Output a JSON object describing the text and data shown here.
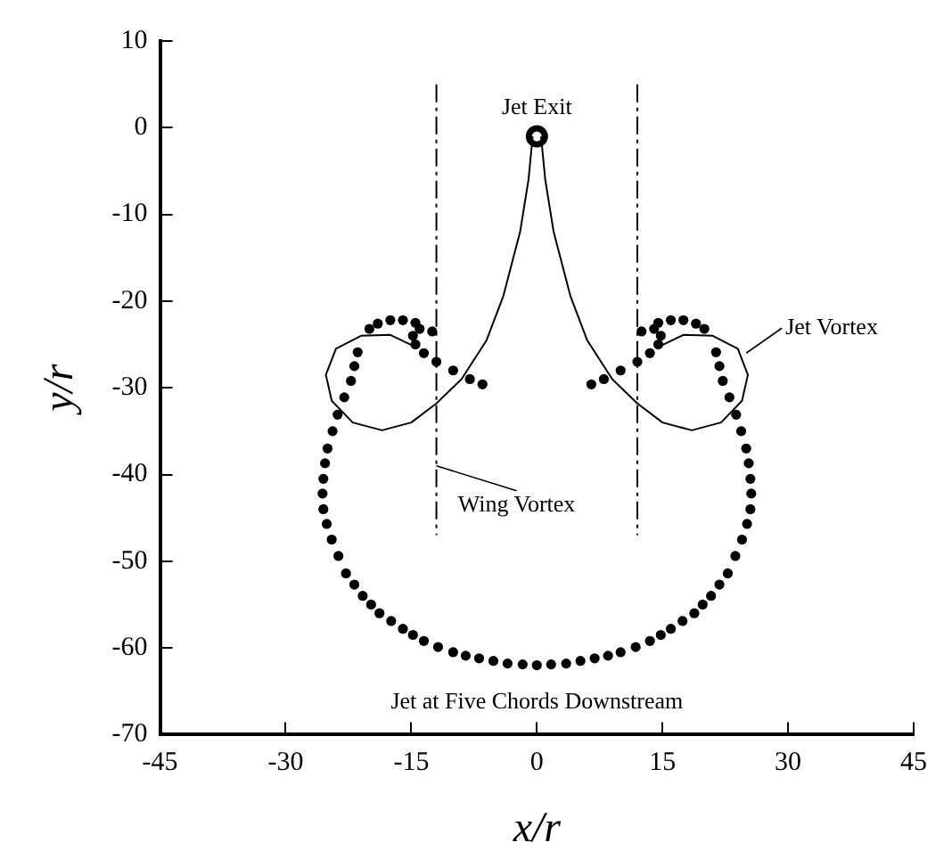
{
  "chart_data": {
    "type": "scatter",
    "xlabel": "x/r",
    "ylabel": "y/r",
    "xlim": [
      -45,
      45
    ],
    "ylim": [
      -70,
      10
    ],
    "xticks": [
      -45,
      -30,
      -15,
      0,
      15,
      30,
      45
    ],
    "yticks": [
      -70,
      -60,
      -50,
      -40,
      -30,
      -20,
      -10,
      0,
      10
    ],
    "grid": false,
    "legend": false,
    "annotations": [
      {
        "text": "Jet Exit",
        "x": 0,
        "y": -1
      },
      {
        "text": "Jet Vortex",
        "x": 25,
        "y": -26
      },
      {
        "text": "Wing Vortex",
        "x": -12,
        "y": -39
      },
      "Jet at Five Chords Downstream"
    ],
    "series": [
      {
        "type": "line",
        "color": "#000000",
        "marker": "none",
        "line_style": "solid",
        "x": [
          -0.5,
          -1,
          -2,
          -4,
          -6,
          -9,
          -12,
          -15,
          -18.5,
          -22,
          -24.5,
          -25.2,
          -24,
          -21,
          -17.5,
          -14.5
        ],
        "values": [
          -1,
          -6,
          -12,
          -19.4,
          -24.5,
          -29,
          -31.8,
          -34,
          -34.9,
          -34,
          -31.5,
          -28.5,
          -25.5,
          -24,
          -23.9,
          -25.3
        ]
      },
      {
        "type": "line",
        "color": "#000000",
        "marker": "none",
        "line_style": "solid",
        "x": [
          0.5,
          1,
          2,
          4,
          6,
          9,
          12,
          15,
          18.5,
          22,
          24.5,
          25.2,
          24,
          21,
          17.5,
          14.5
        ],
        "values": [
          -1,
          -6,
          -12,
          -19.4,
          -24.5,
          -29,
          -31.8,
          -34,
          -34.9,
          -34,
          -31.5,
          -28.5,
          -25.5,
          -24,
          -23.9,
          -25.3
        ]
      },
      {
        "type": "line",
        "color": "#000000",
        "marker": "none",
        "line_style": "dashed",
        "x": [
          -12,
          -12
        ],
        "values": [
          5,
          -47
        ]
      },
      {
        "type": "line",
        "color": "#000000",
        "marker": "none",
        "line_style": "dashed",
        "x": [
          12,
          12
        ],
        "values": [
          5,
          -47
        ]
      },
      {
        "color": "#000000",
        "marker": "circle",
        "x": [
          -21.8,
          -23,
          -24.4,
          -25.3,
          -25.6,
          -25.1,
          -23.7,
          -21.8,
          -19.8,
          -17.4,
          -14.8,
          -11.8,
          -8.5,
          -5.2,
          -1.7,
          21.8,
          23,
          24.4,
          25.3,
          25.6,
          25.1,
          23.7,
          21.8,
          19.8,
          17.4,
          14.8,
          11.8,
          8.5,
          5.2,
          1.7,
          -6.5,
          -8,
          -10,
          -12,
          -13.5,
          -14.5,
          -14.8,
          -14,
          -12.5,
          -14.5,
          -16,
          -17.5,
          -19,
          -20,
          -21.4,
          -22.2,
          -23.8,
          -25,
          -25.5,
          -25.5,
          -24.5,
          -22.8,
          -20.8,
          -18.8,
          -16,
          -13.5,
          -10,
          -6.9,
          -3.5,
          0,
          3.5,
          6.9,
          10,
          13.5,
          16,
          18.8,
          20.8,
          22.8,
          24.5,
          25.5,
          25.5,
          25,
          23.8,
          22.2,
          21.4,
          20,
          19,
          17.5,
          16,
          14.5,
          12.5,
          14,
          14.8,
          14.5,
          13.5,
          12,
          10,
          8,
          6.5
        ],
        "values": [
          -27.5,
          -31.1,
          -35,
          -38.7,
          -42.2,
          -45.7,
          -49.4,
          -52.7,
          -55,
          -56.9,
          -58.5,
          -59.9,
          -60.9,
          -61.5,
          -61.9,
          -27.5,
          -31.1,
          -35,
          -38.7,
          -42.2,
          -45.7,
          -49.4,
          -52.7,
          -55,
          -56.9,
          -58.5,
          -59.9,
          -60.9,
          -61.5,
          -61.9,
          -29.6,
          -29,
          -28,
          -27,
          -26,
          -25,
          -24,
          -23.2,
          -23.5,
          -22.5,
          -22.2,
          -22.2,
          -22.6,
          -23.2,
          -25.9,
          -29.2,
          -33.1,
          -37,
          -40.5,
          -44,
          -47.5,
          -51.4,
          -54,
          -56,
          -57.8,
          -59.2,
          -60.5,
          -61.2,
          -61.8,
          -62,
          -61.8,
          -61.2,
          -60.5,
          -59.2,
          -57.8,
          -56,
          -54,
          -51.4,
          -47.5,
          -44,
          -40.5,
          -37,
          -33.1,
          -29.2,
          -25.9,
          -23.2,
          -22.6,
          -22.2,
          -22.2,
          -22.5,
          -23.5,
          -23.2,
          -24,
          -25,
          -26,
          -27,
          -28,
          -29,
          -29.6
        ]
      },
      {
        "color": "#000000",
        "marker": "circle",
        "x": [
          0
        ],
        "values": [
          -1
        ]
      }
    ]
  }
}
